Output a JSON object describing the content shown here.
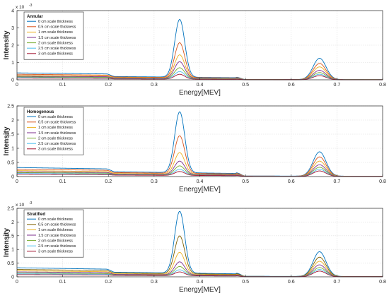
{
  "chart_data": [
    {
      "type": "line",
      "title": "",
      "legend_title": "Annular",
      "legend_position": "top-left",
      "xlabel": "Energy[MEV]",
      "ylabel": "Intensity",
      "exponent_label": "x 10",
      "exponent_power": "-3",
      "xlim": [
        0,
        0.8
      ],
      "ylim": [
        0,
        4
      ],
      "xticks": [
        "0",
        "0.1",
        "0.2",
        "0.3",
        "0.4",
        "0.5",
        "0.6",
        "0.7",
        "0.8"
      ],
      "yticks": [
        "0",
        "1",
        "2",
        "3",
        "4"
      ],
      "grid": true,
      "series": [
        {
          "name": "0 cm scale thickness",
          "color": "#0072bd",
          "peak_0_36": 3.5,
          "peak_0_66": 1.25,
          "baseline_low": 0.4,
          "baseline_mid": 0.19
        },
        {
          "name": "0.5 cm scale thickness",
          "color": "#d95319",
          "peak_0_36": 2.15,
          "peak_0_66": 0.95,
          "baseline_low": 0.32,
          "baseline_mid": 0.16
        },
        {
          "name": "1 cm scale thickness",
          "color": "#edb120",
          "peak_0_36": 1.45,
          "peak_0_66": 0.75,
          "baseline_low": 0.26,
          "baseline_mid": 0.13
        },
        {
          "name": "1.5 cm scale thickness",
          "color": "#7e2f8e",
          "peak_0_36": 1.05,
          "peak_0_66": 0.55,
          "baseline_low": 0.21,
          "baseline_mid": 0.11
        },
        {
          "name": "2 cm scale thickness",
          "color": "#77ac30",
          "peak_0_36": 0.7,
          "peak_0_66": 0.42,
          "baseline_low": 0.17,
          "baseline_mid": 0.09
        },
        {
          "name": "2.5 cm scale thickness",
          "color": "#4dbeee",
          "peak_0_36": 0.48,
          "peak_0_66": 0.32,
          "baseline_low": 0.13,
          "baseline_mid": 0.07
        },
        {
          "name": "3 cm scale thickness",
          "color": "#a2142f",
          "peak_0_36": 0.32,
          "peak_0_66": 0.24,
          "baseline_low": 0.1,
          "baseline_mid": 0.05
        }
      ]
    },
    {
      "type": "line",
      "title": "",
      "legend_title": "Homogenous",
      "legend_position": "top-left",
      "xlabel": "Energy[MEV]",
      "ylabel": "Intensity",
      "exponent_label": "",
      "exponent_power": "",
      "xlim": [
        0,
        0.8
      ],
      "ylim": [
        0,
        2.5
      ],
      "xticks": [
        "0",
        "0.1",
        "0.2",
        "0.3",
        "0.4",
        "0.5",
        "0.6",
        "0.7",
        "0.8"
      ],
      "yticks": [
        "0",
        "0.5",
        "1",
        "1.5",
        "2",
        "2.5"
      ],
      "grid": true,
      "series": [
        {
          "name": "0 cm scale thickness",
          "color": "#0072bd",
          "peak_0_36": 2.3,
          "peak_0_66": 0.88,
          "baseline_low": 0.32,
          "baseline_mid": 0.17
        },
        {
          "name": "0.5 cm scale thickness",
          "color": "#d95319",
          "peak_0_36": 1.45,
          "peak_0_66": 0.7,
          "baseline_low": 0.26,
          "baseline_mid": 0.14
        },
        {
          "name": "1 cm scale thickness",
          "color": "#edb120",
          "peak_0_36": 0.85,
          "peak_0_66": 0.55,
          "baseline_low": 0.21,
          "baseline_mid": 0.11
        },
        {
          "name": "1.5 cm scale thickness",
          "color": "#7e2f8e",
          "peak_0_36": 0.55,
          "peak_0_66": 0.42,
          "baseline_low": 0.17,
          "baseline_mid": 0.09
        },
        {
          "name": "2 cm scale thickness",
          "color": "#77ac30",
          "peak_0_36": 0.38,
          "peak_0_66": 0.33,
          "baseline_low": 0.14,
          "baseline_mid": 0.07
        },
        {
          "name": "2.5 cm scale thickness",
          "color": "#4dbeee",
          "peak_0_36": 0.26,
          "peak_0_66": 0.26,
          "baseline_low": 0.11,
          "baseline_mid": 0.06
        },
        {
          "name": "3 cm scale thickness",
          "color": "#a2142f",
          "peak_0_36": 0.18,
          "peak_0_66": 0.2,
          "baseline_low": 0.08,
          "baseline_mid": 0.05
        }
      ]
    },
    {
      "type": "line",
      "title": "",
      "legend_title": "Stratified",
      "legend_position": "top-left",
      "xlabel": "Energy[MEV]",
      "ylabel": "Intensity",
      "exponent_label": "x 10",
      "exponent_power": "-3",
      "xlim": [
        0,
        0.8
      ],
      "ylim": [
        0,
        2.5
      ],
      "xticks": [
        "0",
        "0.1",
        "0.2",
        "0.3",
        "0.4",
        "0.5",
        "0.6",
        "0.7",
        "0.8"
      ],
      "yticks": [
        "0",
        "0.5",
        "1",
        "1.5",
        "2",
        "2.5"
      ],
      "grid": true,
      "series": [
        {
          "name": "0 cm scale thickness",
          "color": "#0072bd",
          "peak_0_36": 2.4,
          "peak_0_66": 0.92,
          "baseline_low": 0.33,
          "baseline_mid": 0.17
        },
        {
          "name": "0.5 cm scale thickness",
          "color": "#7f6000",
          "peak_0_36": 1.5,
          "peak_0_66": 0.72,
          "baseline_low": 0.27,
          "baseline_mid": 0.14
        },
        {
          "name": "1 cm scale thickness",
          "color": "#edb120",
          "peak_0_36": 0.9,
          "peak_0_66": 0.57,
          "baseline_low": 0.22,
          "baseline_mid": 0.11
        },
        {
          "name": "1.5 cm scale thickness",
          "color": "#7e2f8e",
          "peak_0_36": 0.55,
          "peak_0_66": 0.44,
          "baseline_low": 0.18,
          "baseline_mid": 0.09
        },
        {
          "name": "2 cm scale thickness",
          "color": "#77ac30",
          "peak_0_36": 0.38,
          "peak_0_66": 0.34,
          "baseline_low": 0.14,
          "baseline_mid": 0.07
        },
        {
          "name": "2.5 cm scale thickness",
          "color": "#4dbeee",
          "peak_0_36": 0.26,
          "peak_0_66": 0.27,
          "baseline_low": 0.11,
          "baseline_mid": 0.06
        },
        {
          "name": "3 cm scale thickness",
          "color": "#a2142f",
          "peak_0_36": 0.18,
          "peak_0_66": 0.21,
          "baseline_low": 0.08,
          "baseline_mid": 0.05
        }
      ]
    }
  ]
}
